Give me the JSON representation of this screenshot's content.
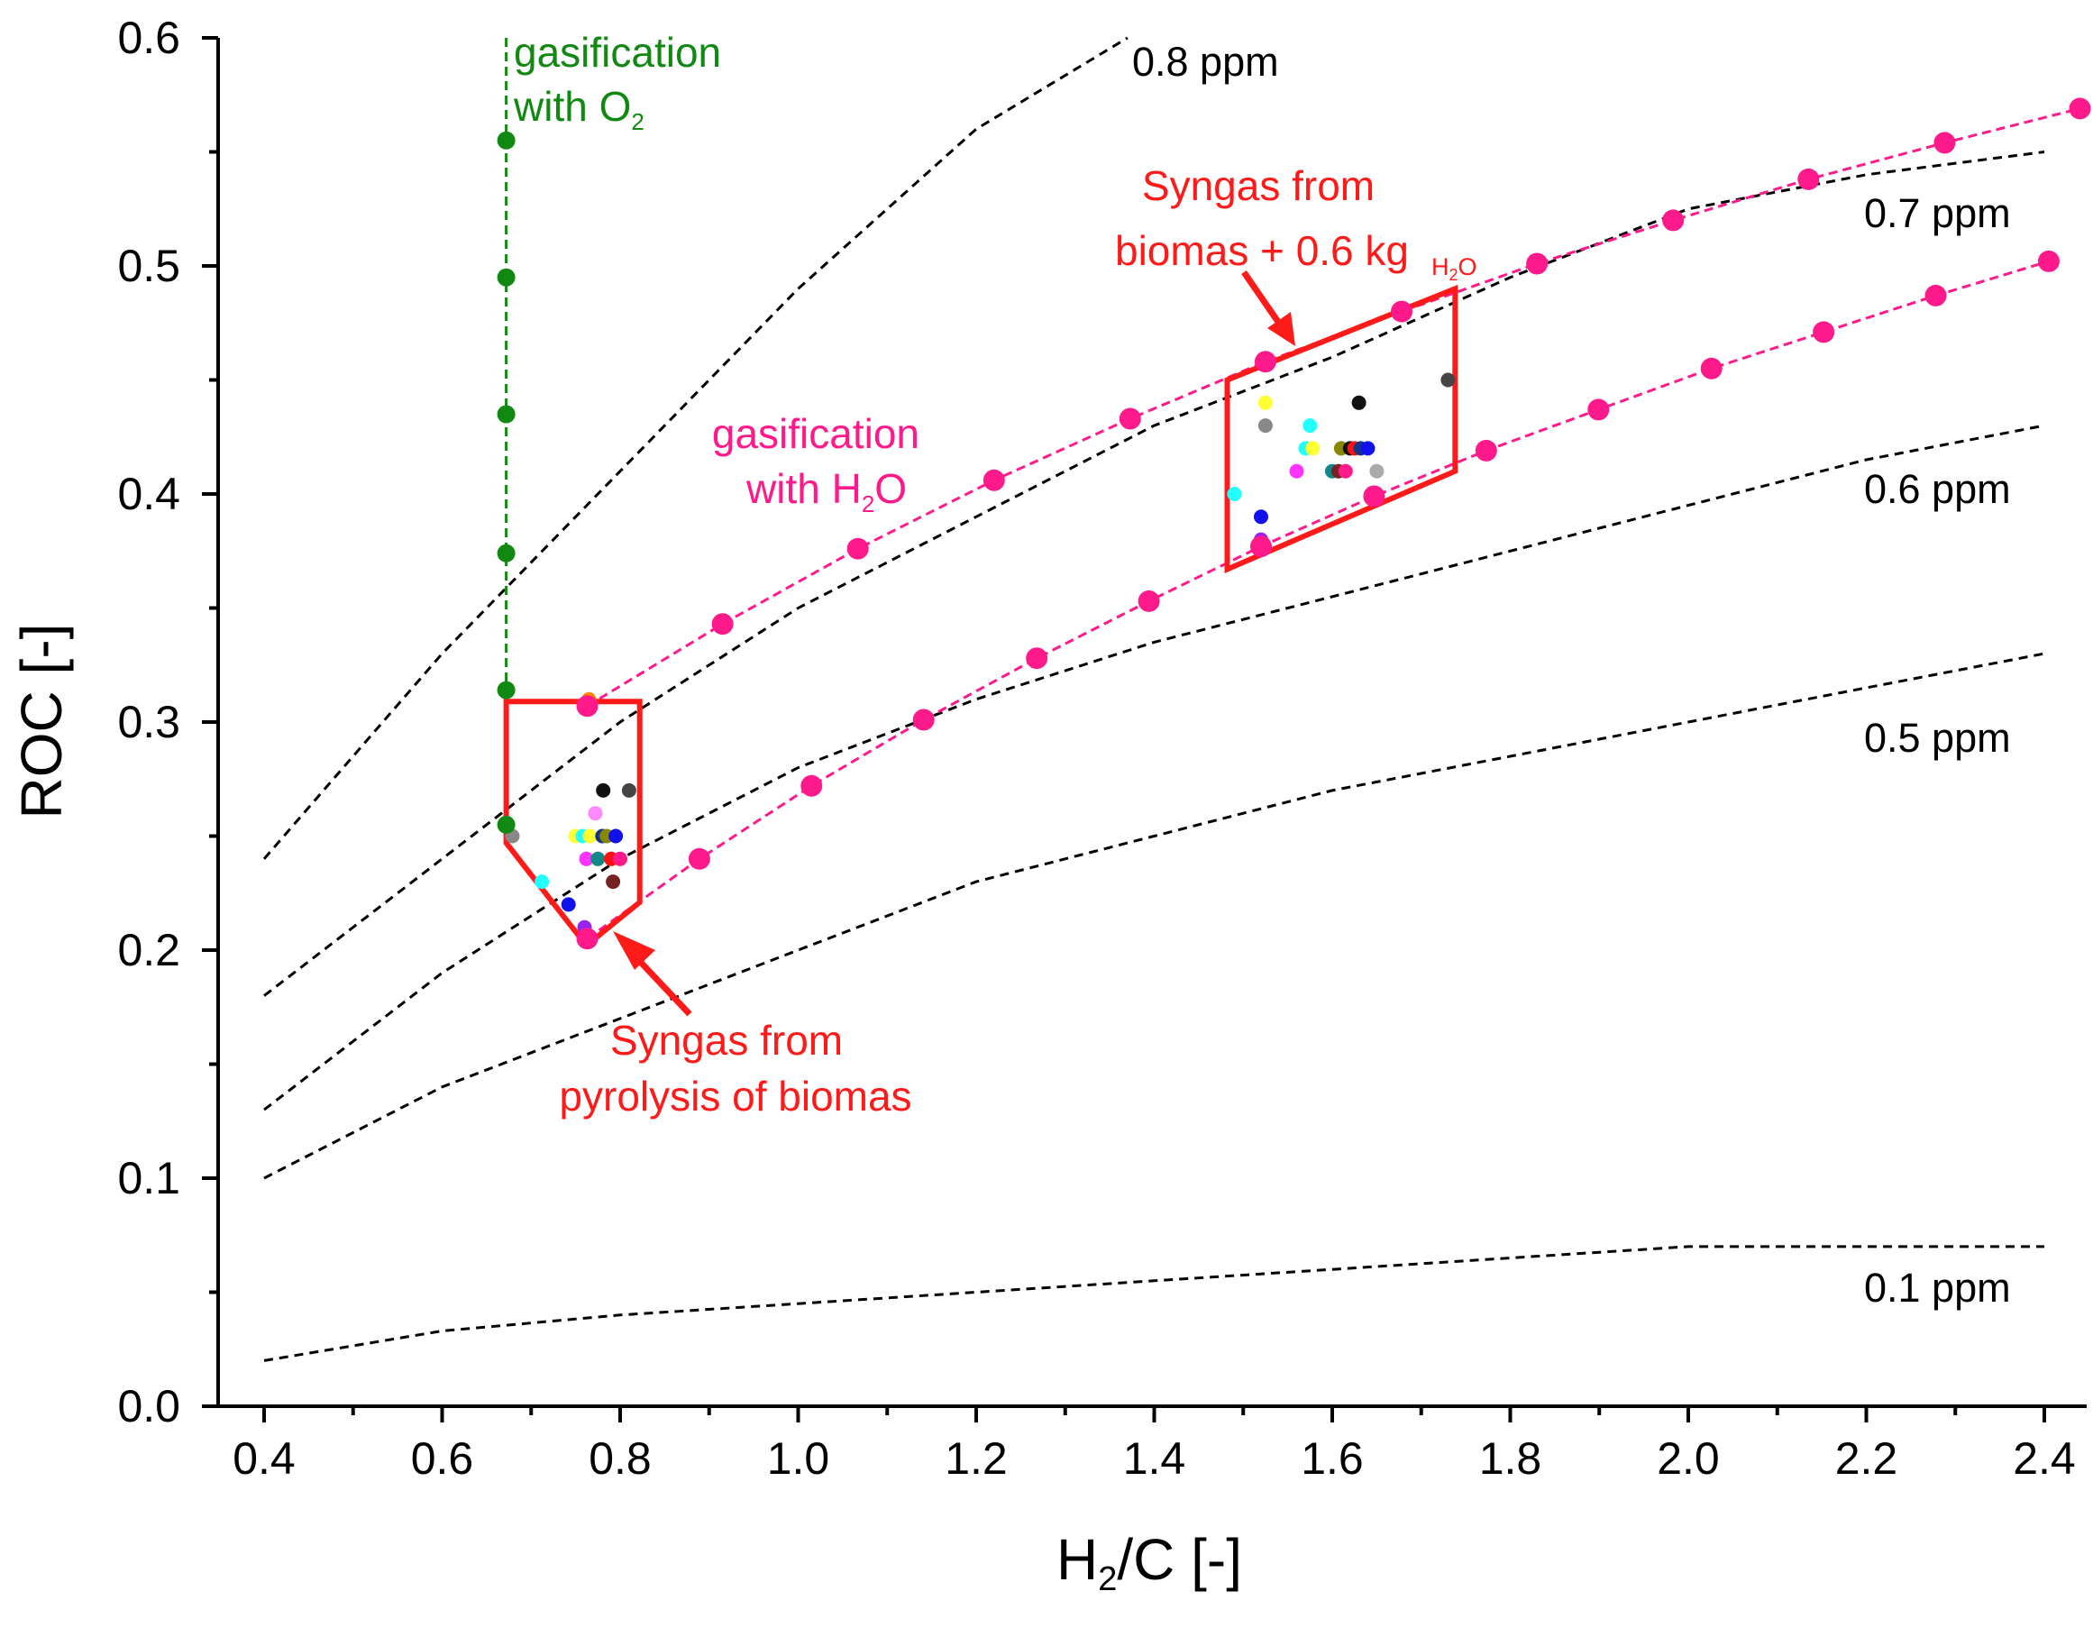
{
  "colors": {
    "axis": "#000000",
    "contour": "#000000",
    "o2": "#118811",
    "h2o": "#ff1a8c",
    "annotation": "#ff1a1a"
  },
  "chart_data": {
    "type": "line",
    "title": "",
    "xlabel_main": "H",
    "xlabel_sub": "2",
    "xlabel_tail": "/C [-]",
    "ylabel": "ROC [-]",
    "xlim": [
      0.35,
      2.45
    ],
    "ylim": [
      0.0,
      0.6
    ],
    "grid": false,
    "x_ticks": [
      0.4,
      0.6,
      0.8,
      1.0,
      1.2,
      1.4,
      1.6,
      1.8,
      2.0,
      2.2,
      2.4
    ],
    "x_tick_labels": [
      "0.4",
      "0.6",
      "0.8",
      "1.0",
      "1.2",
      "1.4",
      "1.6",
      "1.8",
      "2.0",
      "2.2",
      "2.4"
    ],
    "y_ticks": [
      0.0,
      0.1,
      0.2,
      0.3,
      0.4,
      0.5,
      0.6
    ],
    "y_tick_labels": [
      "0.0",
      "0.1",
      "0.2",
      "0.3",
      "0.4",
      "0.5",
      "0.6"
    ],
    "contours": [
      {
        "name": "0.8 ppm",
        "x": [
          0.4,
          0.6,
          0.8,
          1.0,
          1.2,
          1.37
        ],
        "y": [
          0.24,
          0.33,
          0.41,
          0.49,
          0.56,
          0.6
        ]
      },
      {
        "name": "0.7 ppm",
        "x": [
          0.4,
          0.6,
          0.8,
          1.0,
          1.2,
          1.4,
          1.6,
          1.8,
          2.0,
          2.2,
          2.4
        ],
        "y": [
          0.18,
          0.24,
          0.3,
          0.35,
          0.39,
          0.43,
          0.46,
          0.495,
          0.525,
          0.54,
          0.55
        ]
      },
      {
        "name": "0.6 ppm",
        "x": [
          0.4,
          0.6,
          0.8,
          1.0,
          1.2,
          1.4,
          1.6,
          1.8,
          2.0,
          2.2,
          2.4
        ],
        "y": [
          0.13,
          0.19,
          0.24,
          0.28,
          0.31,
          0.335,
          0.355,
          0.375,
          0.395,
          0.415,
          0.43
        ]
      },
      {
        "name": "0.5 ppm",
        "x": [
          0.4,
          0.6,
          0.8,
          1.0,
          1.2,
          1.4,
          1.6,
          1.8,
          2.0,
          2.2,
          2.4
        ],
        "y": [
          0.1,
          0.14,
          0.17,
          0.2,
          0.23,
          0.25,
          0.27,
          0.285,
          0.3,
          0.315,
          0.33
        ]
      },
      {
        "name": "0.1 ppm",
        "x": [
          0.4,
          0.6,
          0.8,
          1.0,
          1.2,
          1.4,
          1.6,
          1.8,
          2.0,
          2.2,
          2.4
        ],
        "y": [
          0.02,
          0.033,
          0.04,
          0.045,
          0.05,
          0.055,
          0.06,
          0.065,
          0.07,
          0.07,
          0.07
        ]
      }
    ],
    "contour_labels": [
      "0.8 ppm",
      "0.7 ppm",
      "0.6 ppm",
      "0.5 ppm",
      "0.1 ppm"
    ],
    "series": [
      {
        "name": "gasification with O2",
        "x": [
          0.672,
          0.672,
          0.672,
          0.672,
          0.672,
          0.672
        ],
        "y": [
          0.555,
          0.495,
          0.435,
          0.374,
          0.314,
          0.255
        ]
      },
      {
        "name": "gasification with H2O (upper)",
        "x": [
          0.763,
          0.915,
          1.067,
          1.22,
          1.373,
          1.525,
          1.678,
          1.83,
          1.983,
          2.135,
          2.288,
          2.44
        ],
        "y": [
          0.307,
          0.343,
          0.376,
          0.406,
          0.433,
          0.458,
          0.48,
          0.501,
          0.52,
          0.538,
          0.554,
          0.569
        ]
      },
      {
        "name": "gasification with H2O (lower)",
        "x": [
          0.763,
          0.889,
          1.015,
          1.141,
          1.268,
          1.394,
          1.52,
          1.647,
          1.773,
          1.899,
          2.026,
          2.152,
          2.278,
          2.405
        ],
        "y": [
          0.205,
          0.24,
          0.272,
          0.301,
          0.328,
          0.353,
          0.377,
          0.399,
          0.419,
          0.437,
          0.455,
          0.471,
          0.487,
          0.502
        ]
      }
    ],
    "regions": [
      {
        "name": "Syngas from pyrolysis of biomas",
        "x": [
          0.672,
          0.672,
          0.825,
          0.825,
          0.76,
          0.672
        ],
        "y": [
          0.309,
          0.248,
          0.249,
          0.309,
          0.202,
          0.248
        ],
        "polygon": [
          [
            0.672,
            0.309
          ],
          [
            0.822,
            0.309
          ],
          [
            0.822,
            0.221
          ],
          [
            0.762,
            0.202
          ],
          [
            0.672,
            0.247
          ]
        ]
      },
      {
        "name": "Syngas from biomas + 0.6 kg H2O",
        "polygon": [
          [
            1.482,
            0.45
          ],
          [
            1.738,
            0.49
          ],
          [
            1.738,
            0.41
          ],
          [
            1.482,
            0.367
          ]
        ]
      }
    ],
    "scatter_points": [
      {
        "x": 0.679,
        "y": 0.25,
        "color": "#888888"
      },
      {
        "x": 0.712,
        "y": 0.23,
        "color": "#22ffff"
      },
      {
        "x": 0.742,
        "y": 0.22,
        "color": "#1111ee"
      },
      {
        "x": 0.76,
        "y": 0.21,
        "color": "#9922ee"
      },
      {
        "x": 0.75,
        "y": 0.25,
        "color": "#ffff33"
      },
      {
        "x": 0.758,
        "y": 0.25,
        "color": "#22ffff"
      },
      {
        "x": 0.762,
        "y": 0.24,
        "color": "#ff33ff"
      },
      {
        "x": 0.766,
        "y": 0.25,
        "color": "#ffff33"
      },
      {
        "x": 0.772,
        "y": 0.26,
        "color": "#ff88ff"
      },
      {
        "x": 0.775,
        "y": 0.24,
        "color": "#118888"
      },
      {
        "x": 0.78,
        "y": 0.25,
        "color": "#113388"
      },
      {
        "x": 0.781,
        "y": 0.27,
        "color": "#111111"
      },
      {
        "x": 0.785,
        "y": 0.25,
        "color": "#888800"
      },
      {
        "x": 0.79,
        "y": 0.24,
        "color": "#ff1111"
      },
      {
        "x": 0.792,
        "y": 0.23,
        "color": "#772222"
      },
      {
        "x": 0.795,
        "y": 0.25,
        "color": "#1111ee"
      },
      {
        "x": 0.8,
        "y": 0.24,
        "color": "#ff1a8c"
      },
      {
        "x": 0.81,
        "y": 0.27,
        "color": "#444444"
      },
      {
        "x": 0.765,
        "y": 0.31,
        "color": "#ff8800"
      },
      {
        "x": 1.49,
        "y": 0.4,
        "color": "#22ffff"
      },
      {
        "x": 1.52,
        "y": 0.39,
        "color": "#1111ee"
      },
      {
        "x": 1.525,
        "y": 0.44,
        "color": "#ffff33"
      },
      {
        "x": 1.525,
        "y": 0.43,
        "color": "#888888"
      },
      {
        "x": 1.52,
        "y": 0.38,
        "color": "#9922ee"
      },
      {
        "x": 1.56,
        "y": 0.41,
        "color": "#ff33ff"
      },
      {
        "x": 1.57,
        "y": 0.42,
        "color": "#22ffff"
      },
      {
        "x": 1.575,
        "y": 0.43,
        "color": "#22ffff"
      },
      {
        "x": 1.578,
        "y": 0.42,
        "color": "#ffff33"
      },
      {
        "x": 1.6,
        "y": 0.41,
        "color": "#118888"
      },
      {
        "x": 1.607,
        "y": 0.41,
        "color": "#772222"
      },
      {
        "x": 1.61,
        "y": 0.42,
        "color": "#888800"
      },
      {
        "x": 1.615,
        "y": 0.41,
        "color": "#ff1a8c"
      },
      {
        "x": 1.62,
        "y": 0.42,
        "color": "#111111"
      },
      {
        "x": 1.625,
        "y": 0.42,
        "color": "#ff1111"
      },
      {
        "x": 1.63,
        "y": 0.44,
        "color": "#111111"
      },
      {
        "x": 1.632,
        "y": 0.42,
        "color": "#113388"
      },
      {
        "x": 1.64,
        "y": 0.42,
        "color": "#1111ee"
      },
      {
        "x": 1.65,
        "y": 0.41,
        "color": "#aaaaaa"
      },
      {
        "x": 1.73,
        "y": 0.45,
        "color": "#444444"
      }
    ],
    "annotations": {
      "o2_line1": "gasification",
      "o2_line2_main": "with O",
      "o2_line2_sub": "2",
      "h2o_line1": "gasification",
      "h2o_line2_main": "with H",
      "h2o_line2_sub": "2",
      "h2o_line2_tail": "O",
      "pyro_line1": "Syngas from",
      "pyro_line2": "pyrolysis of biomas",
      "bio_line1": "Syngas from",
      "bio_line2": "biomas + 0.6 kg",
      "bio_sub": "H",
      "bio_sub_2": "2",
      "bio_sub_tail": "O"
    }
  }
}
